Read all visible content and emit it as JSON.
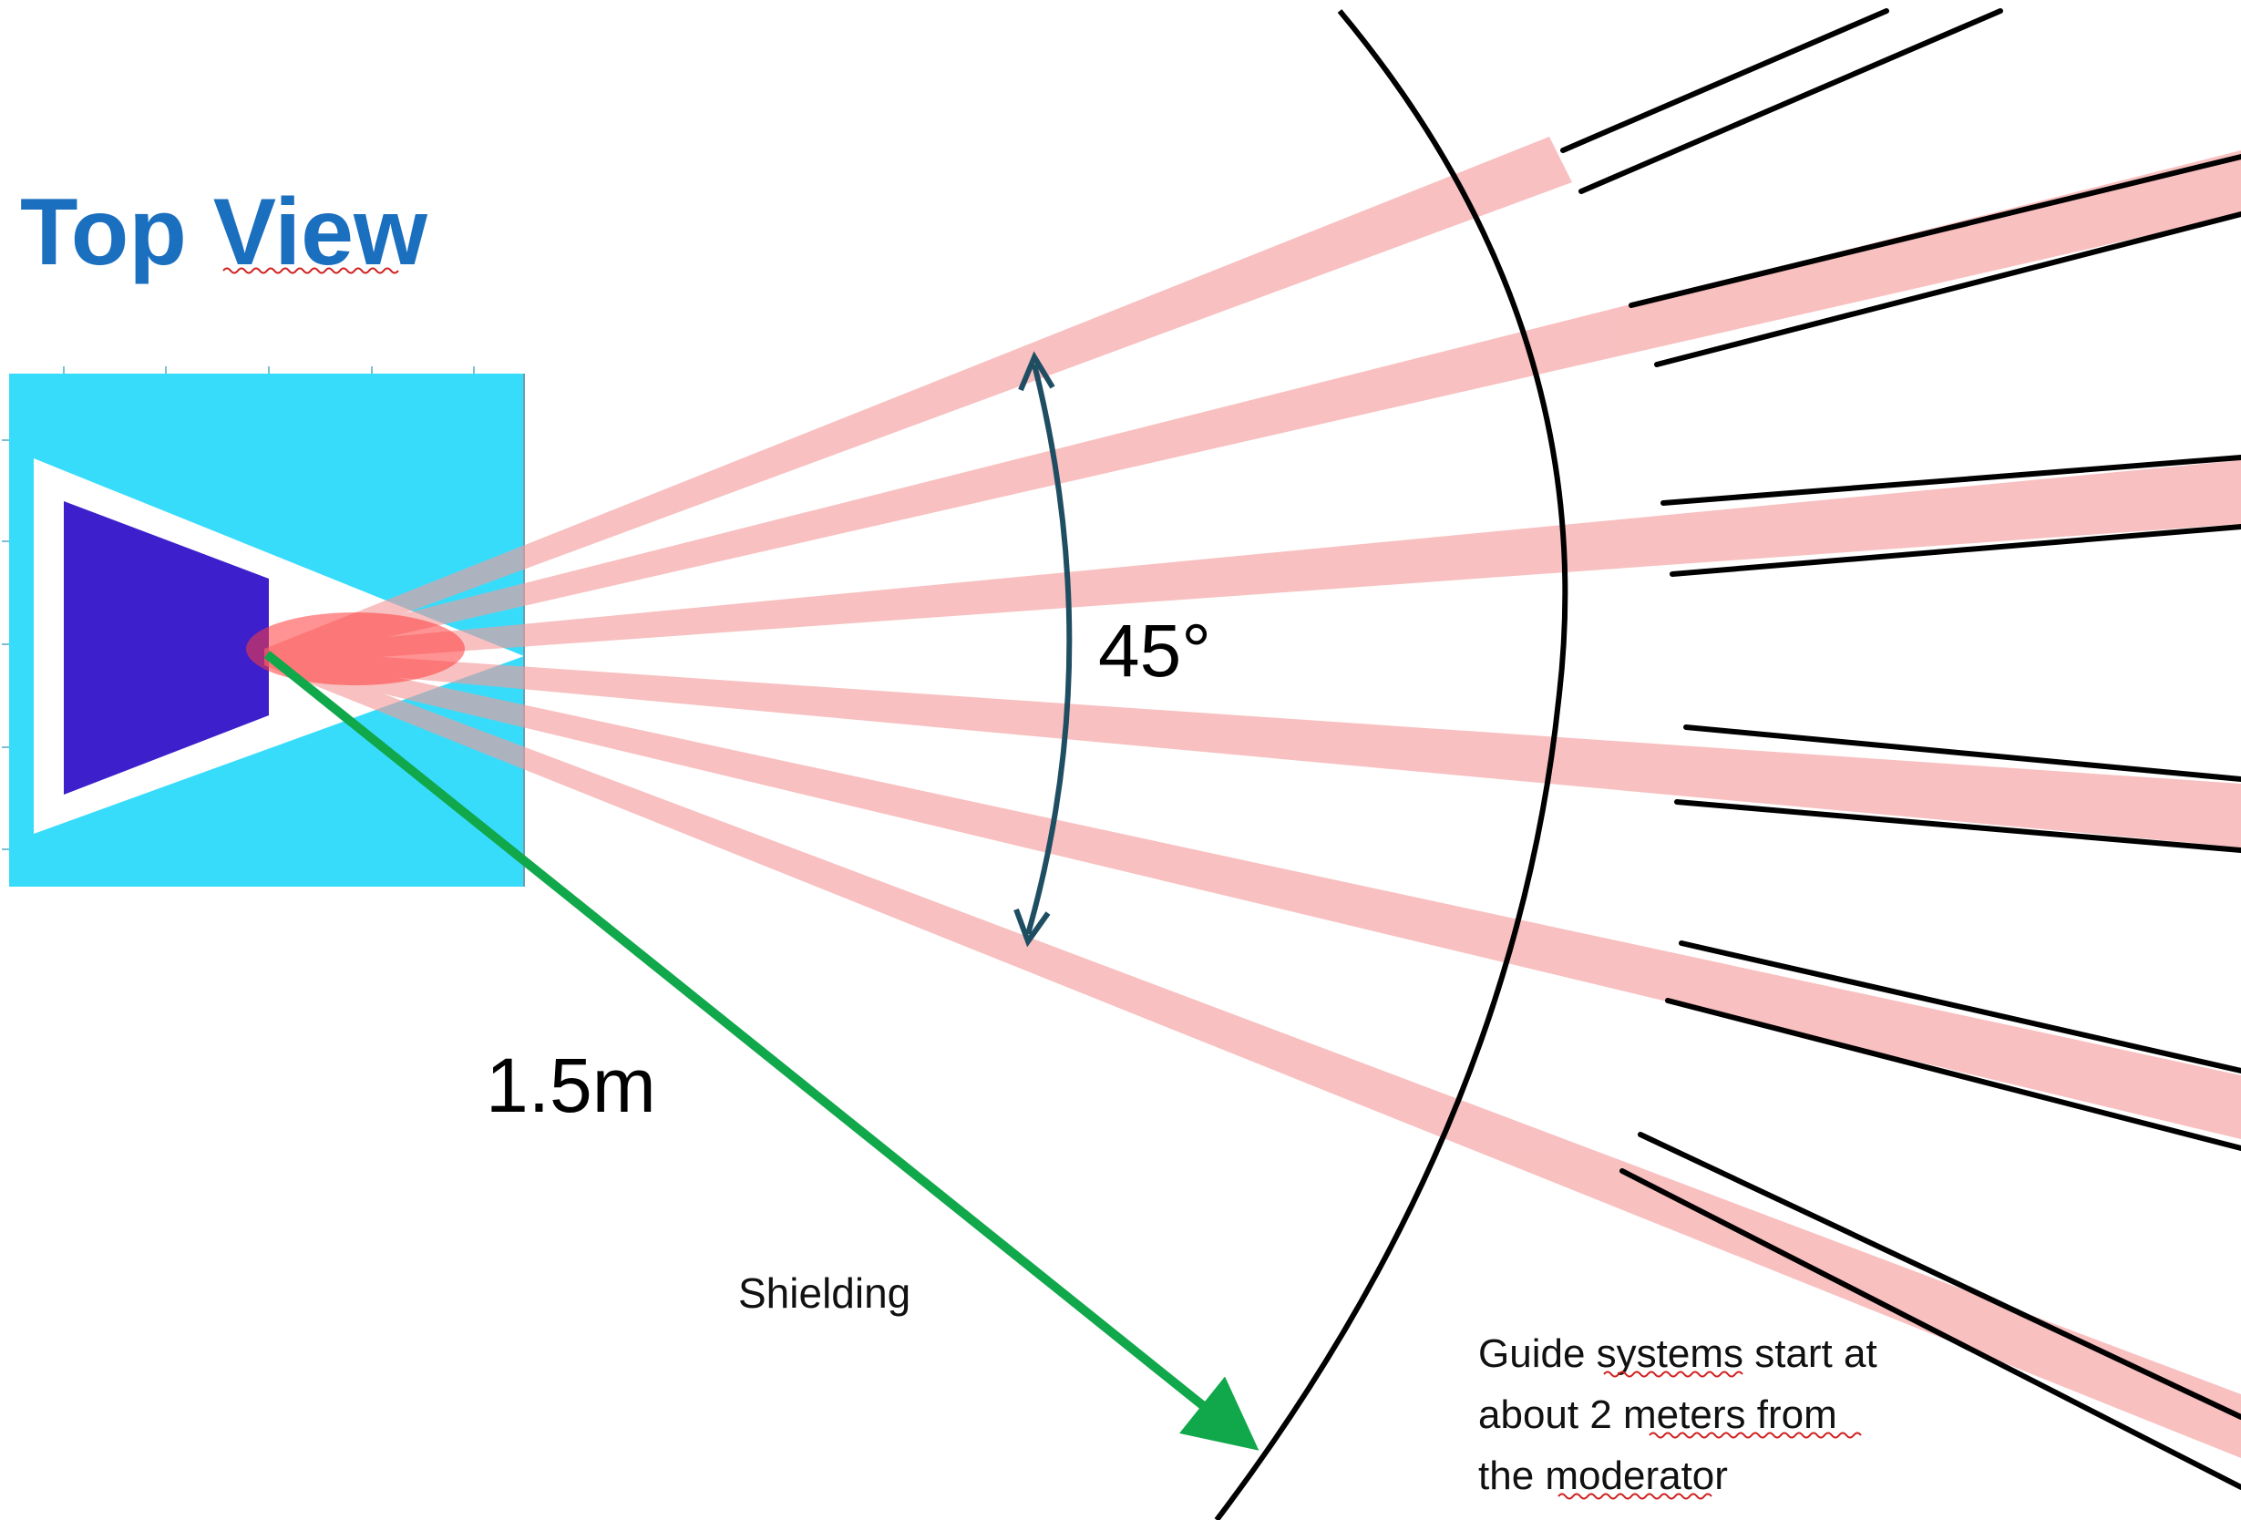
{
  "title": "Top View",
  "angle_label": "45°",
  "radius_label": "1.5m",
  "shielding_label": "Shielding",
  "guide_note": [
    "Guide systems start at",
    "about 2 meters from",
    "the moderator"
  ],
  "colors": {
    "title": "#1b6fbf",
    "moderator_box": "#38dcfb",
    "moderator": "#3d1fcc",
    "beam": "#f7a3a3",
    "beam_core": "#ff3b3b",
    "radius_arrow": "#10a84a",
    "angle_arrow": "#1f4e63",
    "guide_line": "#000000"
  }
}
